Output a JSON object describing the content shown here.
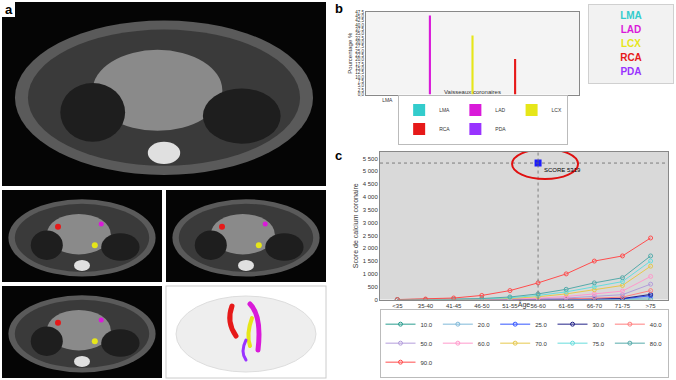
{
  "panel_labels": [
    "a",
    "b",
    "c"
  ],
  "chart_data": [
    {
      "type": "bar",
      "x_label": "Vaisseaux coronaires",
      "y_label": "Pourcentage %",
      "categories": [
        "LMA",
        "LAD",
        "LCX",
        "RCA",
        "PDA"
      ],
      "values": [
        0,
        45.5,
        34,
        20.5,
        0
      ],
      "colors": [
        "#33cccc",
        "#d91ad9",
        "#e6e619",
        "#e61919",
        "#9933ff"
      ],
      "ylim": [
        0,
        47.5
      ],
      "yticks": [
        {
          "value": 0,
          "label": "0,0"
        },
        {
          "value": 2.5,
          "label": "2,5"
        },
        {
          "value": 5,
          "label": "5,0"
        },
        {
          "value": 7.5,
          "label": "7,5"
        },
        {
          "value": 10,
          "label": "10,0"
        },
        {
          "value": 12.5,
          "label": "12,5"
        },
        {
          "value": 15,
          "label": "15,0"
        },
        {
          "value": 17.5,
          "label": "17,5"
        },
        {
          "value": 20,
          "label": "20,0"
        },
        {
          "value": 22.5,
          "label": "22,5"
        },
        {
          "value": 25,
          "label": "25,0"
        },
        {
          "value": 27.5,
          "label": "27,5"
        },
        {
          "value": 30,
          "label": "30,0"
        },
        {
          "value": 32.5,
          "label": "32,5"
        },
        {
          "value": 35,
          "label": "35,0"
        },
        {
          "value": 37.5,
          "label": "37,5"
        },
        {
          "value": 40,
          "label": "40,0"
        },
        {
          "value": 42.5,
          "label": "42,5"
        },
        {
          "value": 45,
          "label": "45,0"
        },
        {
          "value": 47.5,
          "label": "47,5"
        }
      ],
      "grid": false,
      "legend": "bottom"
    },
    {
      "type": "line",
      "x_label": "Âge",
      "y_label": "Score de calcium coronaire",
      "categories": [
        "<35",
        "35-40",
        "41-45",
        "46-50",
        "51-55",
        "56-60",
        "61-65",
        "66-70",
        "71-75",
        ">75"
      ],
      "series": [
        {
          "name": "10.0",
          "color": "#2a9d8f",
          "marker": "circle-open",
          "line_style": "solid",
          "values": [
            0,
            0,
            0,
            0,
            0,
            0,
            0,
            0,
            0,
            10
          ]
        },
        {
          "name": "20.0",
          "color": "#7fb8d8",
          "marker": "circle-open",
          "line_style": "solid",
          "values": [
            0,
            0,
            0,
            0,
            0,
            0,
            0,
            3,
            10,
            80
          ]
        },
        {
          "name": "25.0",
          "color": "#3355ff",
          "marker": "circle-open",
          "line_style": "solid",
          "values": [
            0,
            0,
            0,
            0,
            0,
            0,
            3,
            10,
            25,
            150
          ]
        },
        {
          "name": "30.0",
          "color": "#222288",
          "marker": "circle-open",
          "line_style": "solid",
          "values": [
            0,
            0,
            0,
            0,
            0,
            2,
            8,
            20,
            40,
            200
          ]
        },
        {
          "name": "40.0",
          "color": "#ff7f7f",
          "marker": "circle-open",
          "line_style": "solid",
          "values": [
            0,
            0,
            0,
            0,
            2,
            10,
            25,
            55,
            95,
            350
          ]
        },
        {
          "name": "50.0",
          "color": "#b39ddb",
          "marker": "circle-open",
          "line_style": "solid",
          "values": [
            0,
            0,
            0,
            1,
            8,
            25,
            60,
            120,
            190,
            600
          ]
        },
        {
          "name": "60.0",
          "color": "#ff99cc",
          "marker": "circle-open",
          "line_style": "solid",
          "values": [
            0,
            0,
            0,
            5,
            20,
            55,
            120,
            220,
            330,
            900
          ]
        },
        {
          "name": "70.0",
          "color": "#e6c84c",
          "marker": "circle-open",
          "line_style": "solid",
          "values": [
            0,
            0,
            2,
            15,
            45,
            110,
            220,
            380,
            550,
            1300
          ]
        },
        {
          "name": "75.0",
          "color": "#66dddd",
          "marker": "circle-open",
          "line_style": "solid",
          "values": [
            0,
            0,
            5,
            25,
            70,
            160,
            300,
            500,
            700,
            1500
          ]
        },
        {
          "name": "80.0",
          "color": "#55aaaa",
          "marker": "circle-open",
          "line_style": "solid",
          "values": [
            0,
            0,
            10,
            40,
            100,
            220,
            400,
            650,
            850,
            1700
          ]
        },
        {
          "name": "90.0",
          "color": "#ff4d4d",
          "marker": "circle-open",
          "line_style": "solid",
          "values": [
            0,
            20,
            60,
            160,
            350,
            650,
            1000,
            1500,
            1700,
            2400
          ]
        }
      ],
      "ylim": [
        0,
        5750
      ],
      "yticks": [
        0,
        500,
        {
          "value": 1000,
          "label": "1 000"
        },
        {
          "value": 1500,
          "label": "1 500"
        },
        {
          "value": 2000,
          "label": "2 000"
        },
        {
          "value": 2500,
          "label": "2 500"
        },
        {
          "value": 3000,
          "label": "3 000"
        },
        {
          "value": 3500,
          "label": "3 500"
        },
        {
          "value": 4000,
          "label": "4 000"
        },
        {
          "value": 4500,
          "label": "4 500"
        },
        {
          "value": 5000,
          "label": "5 000"
        },
        {
          "value": 5500,
          "label": "5 500"
        }
      ],
      "grid": false,
      "legend": "bottom",
      "annotations": [
        {
          "x": "56-60",
          "y": 5319,
          "text": "SCORE 5319",
          "color": "#1a1aff",
          "marker": "square"
        }
      ]
    }
  ]
}
